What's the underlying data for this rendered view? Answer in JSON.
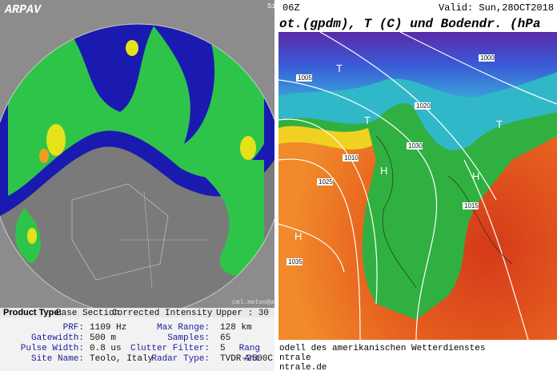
{
  "radar": {
    "logo": "ARPAV",
    "site_cut": "Sit",
    "credit": "cml.meteo@arpa",
    "product": {
      "label": "Product Type:",
      "value": "Base Section",
      "mode": "Corrected Intensity",
      "upper": "Upper : 30"
    },
    "params": [
      [
        "PRF:",
        "1109 Hz",
        "Max Range:",
        "128 km"
      ],
      [
        "Gatewidth:",
        "500 m",
        "Samples:",
        "65"
      ],
      [
        "Pulse Width:",
        "0.8 us",
        "Clutter Filter:",
        "5",
        "Rang"
      ],
      [
        "Site Name:",
        "Teolo, Italy",
        "Radar Type:",
        "TVDR-2500C",
        "Ant"
      ]
    ]
  },
  "map": {
    "run": "06Z",
    "valid": "Valid: Sun,28OCT2018",
    "title": "ot.(gpdm), T (C) und Bodendr. (hPa",
    "footer": [
      "odell des amerikanischen Wetterdienstes",
      "ntrale",
      "ntrale.de"
    ],
    "isobars": [
      "1000",
      "1005",
      "1010",
      "1015",
      "1020",
      "1025",
      "1030",
      "1035"
    ],
    "symbols": [
      "H",
      "T"
    ]
  }
}
